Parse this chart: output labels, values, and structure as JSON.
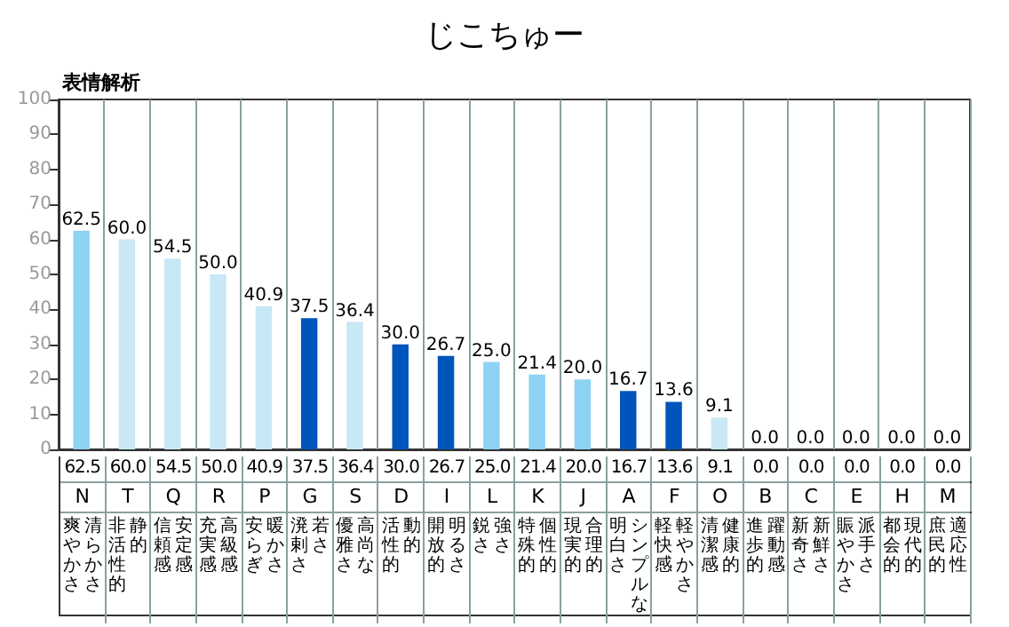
{
  "chart_data": {
    "type": "bar",
    "title": "じこちゅー",
    "subtitle": "表情解析",
    "categories": [
      "N",
      "T",
      "Q",
      "R",
      "P",
      "G",
      "S",
      "D",
      "I",
      "L",
      "K",
      "J",
      "A",
      "F",
      "O",
      "B",
      "C",
      "E",
      "H",
      "M"
    ],
    "values": [
      62.5,
      60.0,
      54.5,
      50.0,
      40.9,
      37.5,
      36.4,
      30.0,
      26.7,
      25.0,
      21.4,
      20.0,
      16.7,
      13.6,
      9.1,
      0.0,
      0.0,
      0.0,
      0.0,
      0.0
    ],
    "value_labels": [
      "62.5",
      "60.0",
      "54.5",
      "50.0",
      "40.9",
      "37.5",
      "36.4",
      "30.0",
      "26.7",
      "25.0",
      "21.4",
      "20.0",
      "16.7",
      "13.6",
      "9.1",
      "0.0",
      "0.0",
      "0.0",
      "0.0",
      "0.0"
    ],
    "colors": [
      "#8dd3f3",
      "#c8e8f6",
      "#c8e8f6",
      "#c8e8f6",
      "#c8e8f6",
      "#0055bb",
      "#c8e8f6",
      "#0055bb",
      "#0055bb",
      "#8dd3f3",
      "#8dd3f3",
      "#8dd3f3",
      "#0055bb",
      "#0055bb",
      "#c8e8f6",
      "#8dd3f3",
      "#8dd3f3",
      "#8dd3f3",
      "#8dd3f3",
      "#8dd3f3"
    ],
    "ylim": [
      0,
      100
    ],
    "yticks": [
      0,
      10,
      20,
      30,
      40,
      50,
      60,
      70,
      80,
      90,
      100
    ],
    "grid": "x",
    "annotations": [
      "清らかさ",
      "爽やかさ",
      "静的",
      "非活性的",
      "安定感",
      "信頼感",
      "高級感",
      "充実感",
      "暖かさ",
      "安らぎ",
      "若さ",
      "溌剌さ",
      "高尚な",
      "優雅さ",
      "動的",
      "活性的",
      "明るさ",
      "開放的",
      "強さ",
      "鋭さ",
      "個性的",
      "特殊的",
      "合理的",
      "現実的",
      "シンプルな",
      "明白さ",
      "軽やかさ",
      "軽快感",
      "健康的",
      "清潔感",
      "躍動感",
      "進歩的",
      "新鮮さ",
      "新奇さ",
      "派手さ",
      "賑やかさ",
      "現代的",
      "都会的",
      "適応性",
      "庶民的"
    ]
  }
}
